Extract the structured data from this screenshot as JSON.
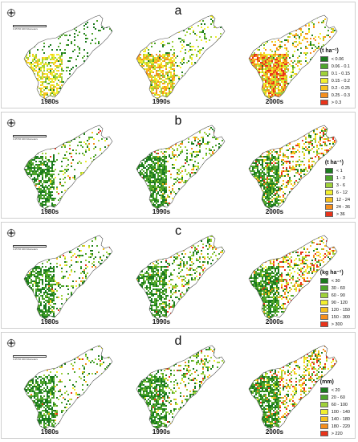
{
  "decades": [
    "1980s",
    "1990s",
    "2000s"
  ],
  "scale_text": "0  25  50        100 Kilometers",
  "colors": {
    "ramp": [
      "#1b7a1e",
      "#4ea52c",
      "#9fd13a",
      "#f2ef2e",
      "#f6c21f",
      "#f58e1d",
      "#e8331a"
    ],
    "outline": "#555555"
  },
  "panels": [
    {
      "letter": "a",
      "legend_title": "(t ha⁻¹)",
      "legend_labels": [
        "< 0.06",
        "0.06 - 0.1",
        "0.1 - 0.15",
        "0.15 - 0.2",
        "0.2 - 0.25",
        "0.25 - 0.3",
        "> 0.3"
      ]
    },
    {
      "letter": "b",
      "legend_title": "(t ha⁻¹)",
      "legend_labels": [
        "< 1",
        "1 - 3",
        "3 - 6",
        "6 - 12",
        "12 - 24",
        "24 - 36",
        "> 36"
      ]
    },
    {
      "letter": "c",
      "legend_title": "(kg ha⁻¹)",
      "legend_labels": [
        "< 30",
        "30 - 60",
        "60 - 90",
        "90 - 120",
        "120 - 150",
        "150 - 300",
        "> 300"
      ]
    },
    {
      "letter": "d",
      "legend_title": "(mm)",
      "legend_labels": [
        "< 20",
        "20 - 60",
        "60 - 100",
        "100 - 140",
        "140 - 180",
        "180 - 220",
        "> 220"
      ]
    }
  ]
}
